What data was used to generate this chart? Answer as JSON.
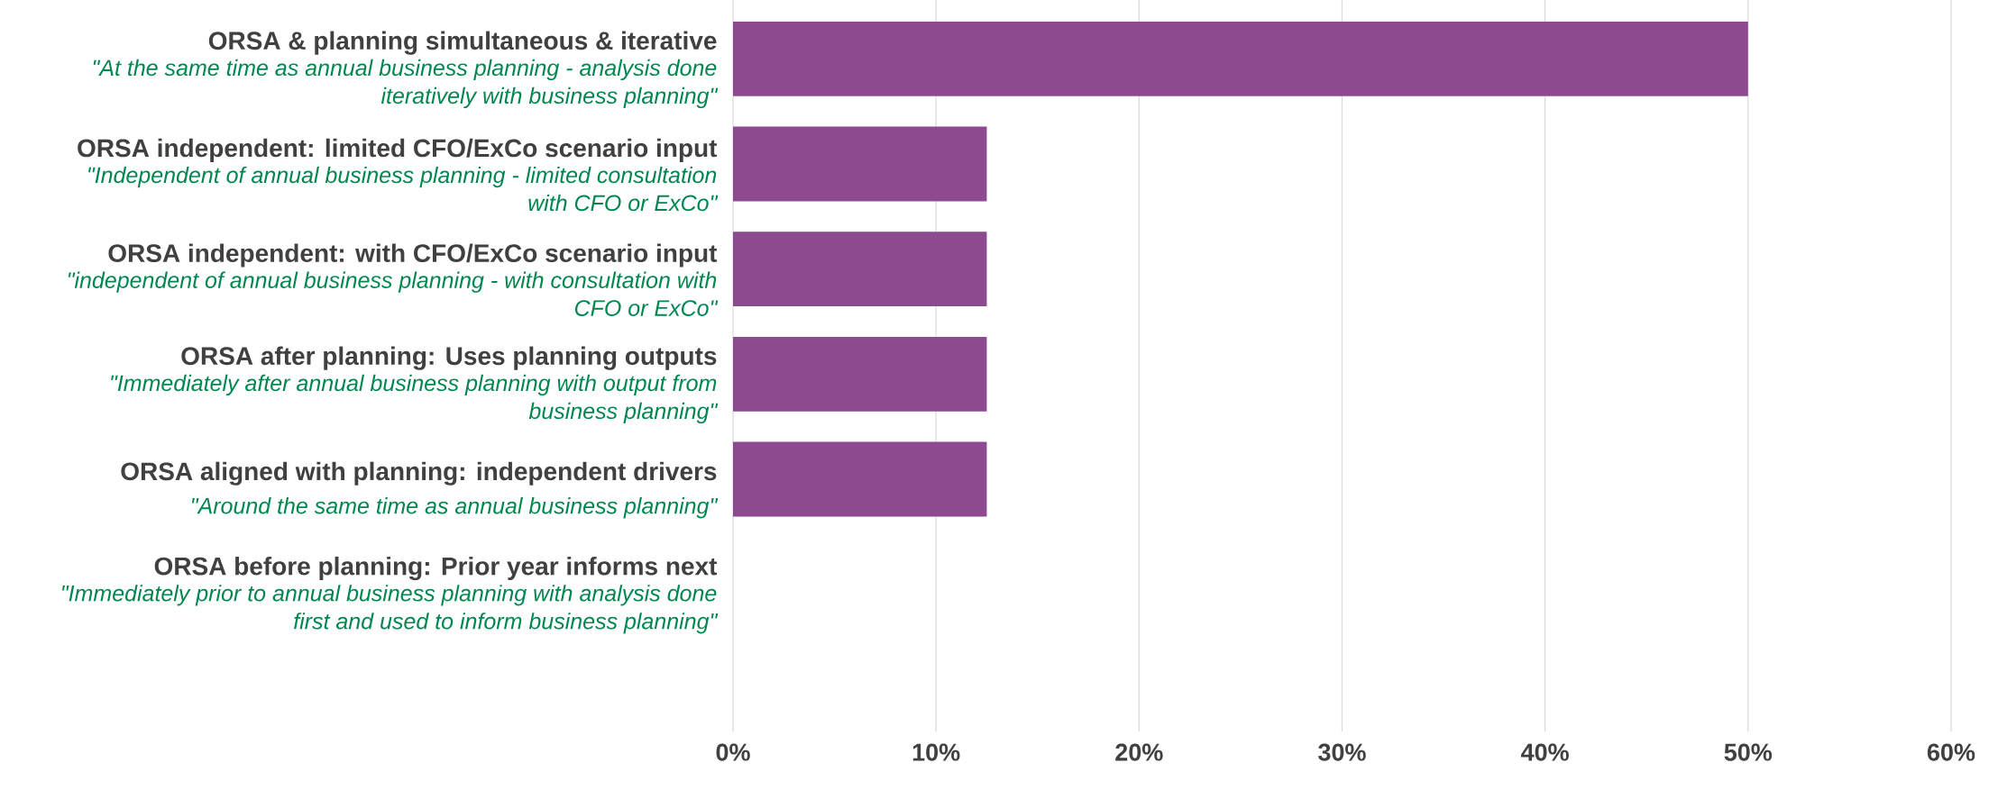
{
  "chart_data": {
    "type": "bar",
    "orientation": "horizontal",
    "categories": [
      "ORSA & planning simultaneous & iterative",
      "ORSA independent: limited CFO/ExCo scenario input",
      "ORSA independent: with CFO/ExCo scenario input",
      "ORSA after planning: Uses planning outputs",
      "ORSA aligned with planning: independent drivers",
      "ORSA before planning: Prior year informs next"
    ],
    "values": [
      50,
      12.5,
      12.5,
      12.5,
      12.5,
      0
    ],
    "color": "#8e4a91",
    "xlim": [
      0,
      60
    ],
    "xticks": [
      {
        "value": 0,
        "label": "0%"
      },
      {
        "value": 10,
        "label": "10%"
      },
      {
        "value": 20,
        "label": "20%"
      },
      {
        "value": 30,
        "label": "30%"
      },
      {
        "value": 40,
        "label": "40%"
      },
      {
        "value": 50,
        "label": "50%"
      },
      {
        "value": 60,
        "label": "60%"
      }
    ],
    "grid": "x",
    "annotations": [
      "\"At the same time as annual business planning - analysis done iteratively with business planning\"",
      "\"Independent of annual business planning - limited consultation with CFO or ExCo\"",
      "\"independent of annual business planning - with consultation with CFO or ExCo\"",
      "\"Immediately after annual business planning with output from business planning\"",
      "\"Around the same time as annual business planning\"",
      "\"Immediately prior to annual business planning with analysis done first and used to inform business planning\""
    ]
  }
}
